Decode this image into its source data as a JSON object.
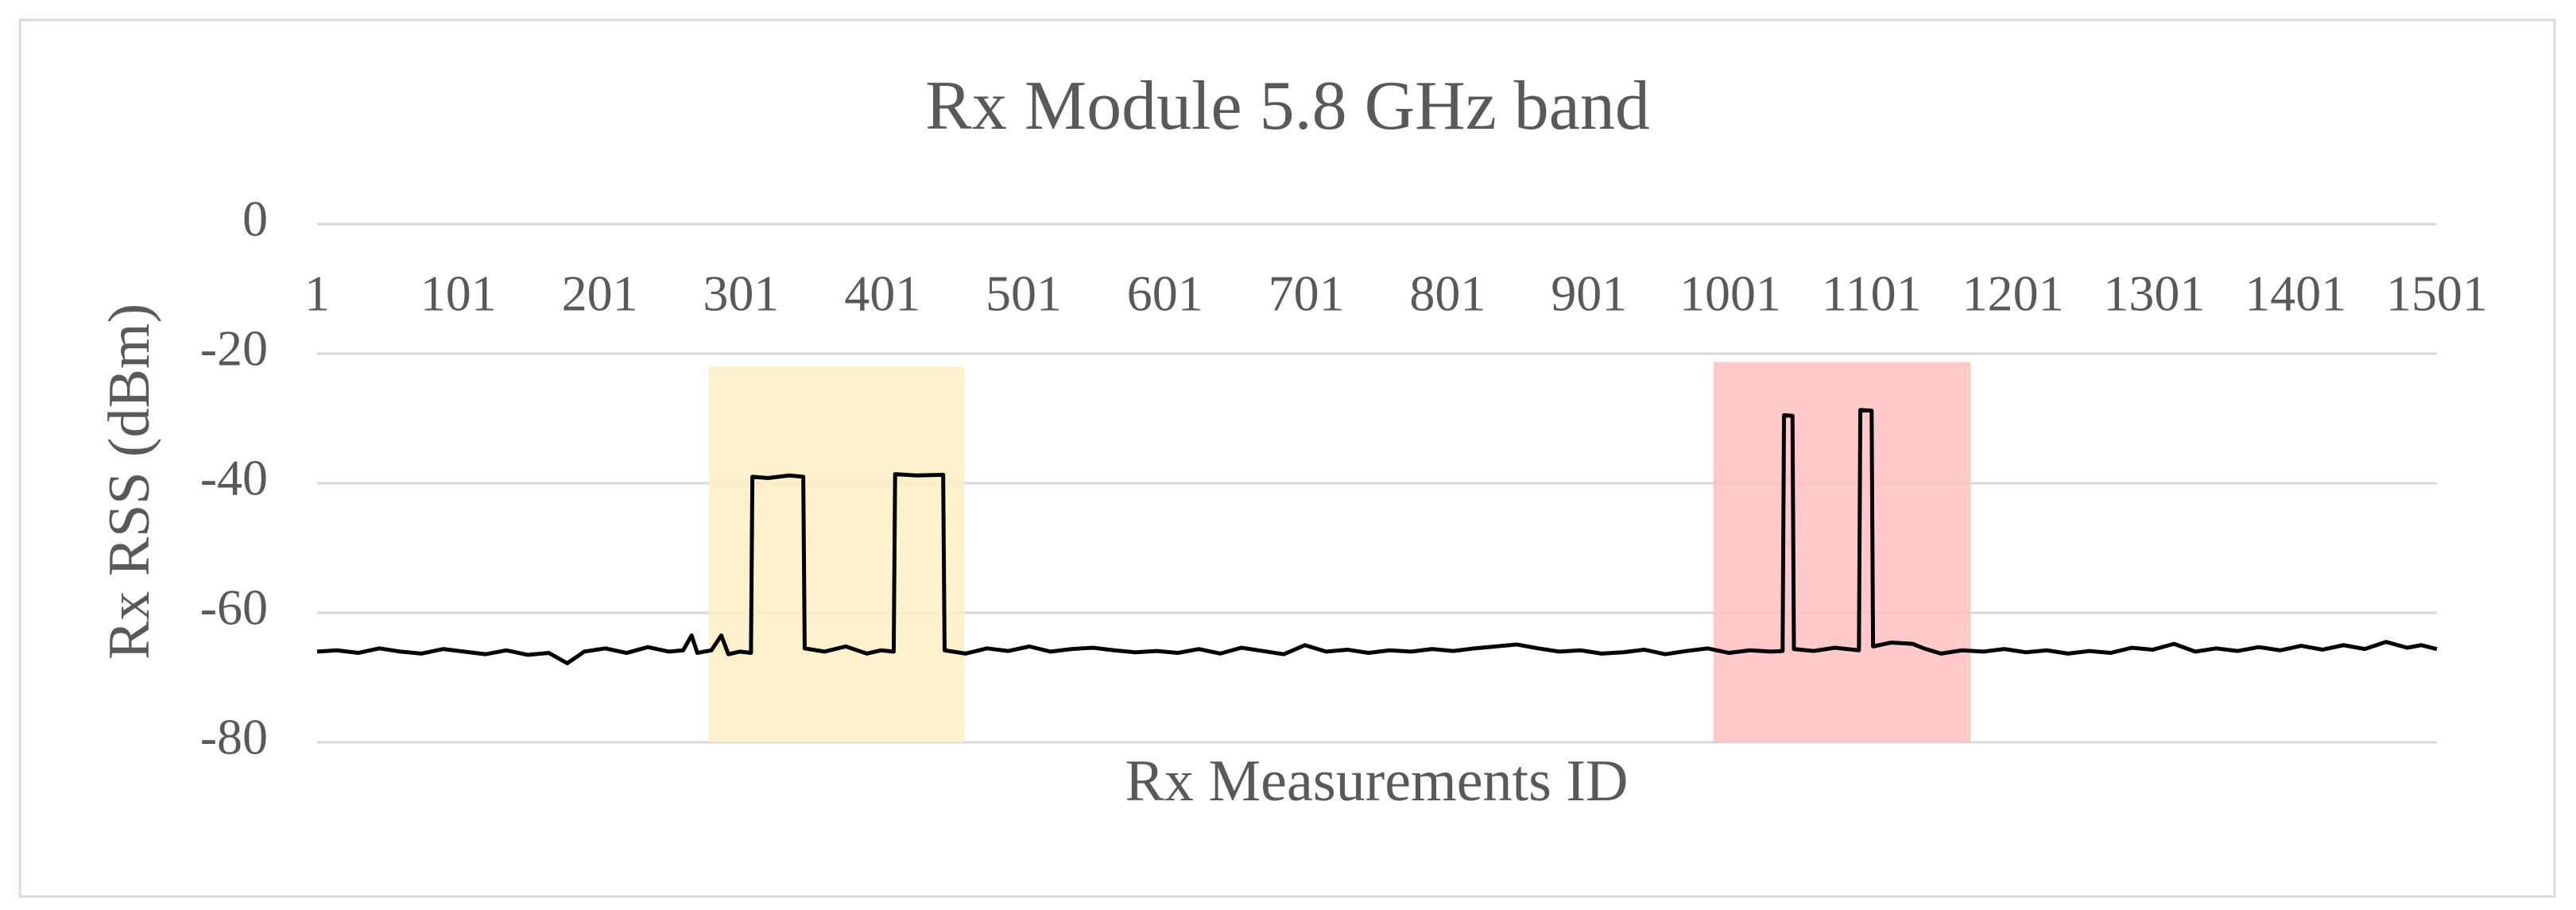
{
  "chart_data": {
    "type": "line",
    "title": "Rx Module 5.8 GHz band",
    "x_label": "Rx Measurements ID",
    "y_label": "Rx RSS (dBm)",
    "color": "#000000",
    "xlim": [
      1,
      1501
    ],
    "xticks": [
      1,
      101,
      201,
      301,
      401,
      501,
      601,
      701,
      801,
      901,
      1001,
      1101,
      1201,
      1301,
      1401,
      1501
    ],
    "ylim": [
      -80,
      0
    ],
    "yticks": [
      0,
      -20,
      -40,
      -60,
      -80
    ],
    "grid": true,
    "highlights": [
      {
        "x": [
          278,
          459
        ],
        "y": [
          -80,
          -22
        ],
        "color": "#fdefc2"
      },
      {
        "x": [
          989,
          1171
        ],
        "y": [
          -80,
          -21.3
        ],
        "color": "#ffbfbf"
      }
    ],
    "x": [
      1,
      15,
      30,
      45,
      60,
      75,
      90,
      105,
      120,
      135,
      150,
      165,
      178,
      190,
      205,
      220,
      235,
      250,
      260,
      266,
      270,
      280,
      287,
      292,
      300,
      308,
      309,
      320,
      335,
      345,
      346,
      360,
      375,
      390,
      400,
      409,
      410,
      425,
      444,
      445,
      460,
      475,
      490,
      505,
      520,
      535,
      550,
      565,
      580,
      595,
      610,
      625,
      640,
      655,
      670,
      685,
      700,
      715,
      730,
      745,
      760,
      775,
      790,
      805,
      820,
      835,
      850,
      865,
      880,
      895,
      910,
      925,
      940,
      955,
      970,
      985,
      1000,
      1015,
      1030,
      1038,
      1039,
      1045,
      1046,
      1060,
      1075,
      1092,
      1093,
      1101,
      1102,
      1115,
      1130,
      1138,
      1150,
      1165,
      1180,
      1195,
      1210,
      1225,
      1240,
      1255,
      1270,
      1285,
      1300,
      1315,
      1330,
      1345,
      1360,
      1375,
      1390,
      1405,
      1420,
      1435,
      1450,
      1465,
      1480,
      1490,
      1501
    ],
    "values": [
      -66,
      -65.8,
      -66.2,
      -65.5,
      -66,
      -66.3,
      -65.6,
      -66,
      -66.4,
      -65.8,
      -66.5,
      -66.2,
      -67.8,
      -66,
      -65.5,
      -66.2,
      -65.3,
      -66,
      -65.8,
      -63.5,
      -66.2,
      -65.8,
      -63.5,
      -66.4,
      -66,
      -66.2,
      -39,
      -39.2,
      -38.8,
      -39,
      -65.5,
      -66,
      -65.2,
      -66.3,
      -65.8,
      -66,
      -38.6,
      -38.8,
      -38.7,
      -65.8,
      -66.3,
      -65.5,
      -65.9,
      -65.2,
      -66,
      -65.6,
      -65.4,
      -65.8,
      -66.1,
      -65.9,
      -66.2,
      -65.6,
      -66.3,
      -65.4,
      -65.9,
      -66.4,
      -65,
      -66,
      -65.7,
      -66.2,
      -65.8,
      -66,
      -65.6,
      -65.9,
      -65.5,
      -65.2,
      -64.9,
      -65.5,
      -66,
      -65.8,
      -66.3,
      -66.1,
      -65.7,
      -66.4,
      -65.9,
      -65.5,
      -66.2,
      -65.8,
      -66,
      -65.9,
      -29.5,
      -29.6,
      -65.6,
      -65.9,
      -65.4,
      -65.8,
      -28.7,
      -28.8,
      -65.2,
      -64.6,
      -64.8,
      -65.5,
      -66.3,
      -65.8,
      -66,
      -65.6,
      -66.1,
      -65.8,
      -66.3,
      -65.9,
      -66.2,
      -65.4,
      -65.7,
      -64.8,
      -66,
      -65.5,
      -65.9,
      -65.3,
      -65.8,
      -65.1,
      -65.7,
      -65,
      -65.6,
      -64.5,
      -65.4,
      -65,
      -65.6
    ]
  }
}
